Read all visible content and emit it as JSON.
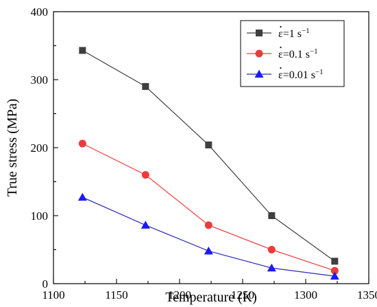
{
  "chart_data": {
    "type": "line",
    "title": "",
    "xlabel": "Temperature (K)",
    "ylabel": "True stress (MPa)",
    "xlim": [
      1100,
      1350
    ],
    "ylim": [
      0,
      400
    ],
    "x_ticks": [
      "1100",
      "1150",
      "1200",
      "1250",
      "1300",
      "1350"
    ],
    "y_ticks": [
      "0",
      "100",
      "200",
      "300",
      "400"
    ],
    "grid": false,
    "legend_position": "top-right",
    "x": [
      1123,
      1173,
      1223,
      1273,
      1323
    ],
    "series": [
      {
        "name": "ε̇=1 s⁻¹",
        "name_base": "ε=1 s",
        "name_sup": "−1",
        "marker": "square",
        "color": "#3f3f3f",
        "values": [
          343,
          290,
          204,
          100,
          33
        ]
      },
      {
        "name": "ε̇=0.1 s⁻¹",
        "name_base": "ε=0.1 s",
        "name_sup": "−1",
        "marker": "circle",
        "color": "#ef3a3a",
        "values": [
          206,
          160,
          86,
          50,
          19
        ]
      },
      {
        "name": "ε̇=0.01 s⁻¹",
        "name_base": "ε=0.01 s",
        "name_sup": "−1",
        "marker": "triangle",
        "color": "#1c1cf0",
        "line_color": "#2a2ab8",
        "values": [
          127,
          86,
          48,
          23,
          11
        ]
      }
    ]
  }
}
